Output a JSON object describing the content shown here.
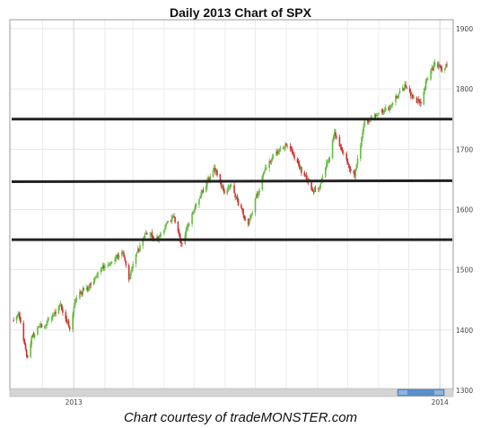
{
  "chart_data": {
    "type": "candlestick",
    "title": "Daily 2013 Chart of SPX",
    "caption": "Chart courtesy of tradeMONSTER.com",
    "xlabel": "",
    "ylabel": "",
    "x_range": [
      "2012-11-01",
      "2014-01-08"
    ],
    "ylim": [
      1300,
      1900
    ],
    "y_ticks": [
      "1900",
      "1800",
      "1700",
      "1600",
      "1500",
      "1400",
      "1300"
    ],
    "x_ticks": [
      "2013",
      "2014"
    ],
    "x_tick_dates": [
      "2013-01-01",
      "2014-01-01"
    ],
    "grid": true,
    "up_color": "#66bb44",
    "down_color": "#cc3333",
    "horizontal_lines": [
      1750,
      1647,
      1550
    ],
    "line_color": "#222222",
    "path": [
      [
        "2012-11-01",
        1412
      ],
      [
        "2012-11-07",
        1428
      ],
      [
        "2012-11-12",
        1380
      ],
      [
        "2012-11-16",
        1352
      ],
      [
        "2012-11-20",
        1387
      ],
      [
        "2012-11-26",
        1405
      ],
      [
        "2012-12-03",
        1410
      ],
      [
        "2012-12-10",
        1420
      ],
      [
        "2012-12-18",
        1443
      ],
      [
        "2012-12-28",
        1403
      ],
      [
        "2013-01-03",
        1455
      ],
      [
        "2013-01-15",
        1470
      ],
      [
        "2013-01-28",
        1502
      ],
      [
        "2013-02-11",
        1518
      ],
      [
        "2013-02-19",
        1530
      ],
      [
        "2013-02-25",
        1488
      ],
      [
        "2013-03-04",
        1525
      ],
      [
        "2013-03-14",
        1560
      ],
      [
        "2013-03-25",
        1552
      ],
      [
        "2013-04-11",
        1590
      ],
      [
        "2013-04-18",
        1542
      ],
      [
        "2013-04-30",
        1595
      ],
      [
        "2013-05-10",
        1632
      ],
      [
        "2013-05-21",
        1670
      ],
      [
        "2013-05-31",
        1630
      ],
      [
        "2013-06-06",
        1640
      ],
      [
        "2013-06-24",
        1573
      ],
      [
        "2013-07-01",
        1615
      ],
      [
        "2013-07-10",
        1665
      ],
      [
        "2013-07-22",
        1695
      ],
      [
        "2013-08-02",
        1708
      ],
      [
        "2013-08-15",
        1668
      ],
      [
        "2013-08-27",
        1632
      ],
      [
        "2013-09-03",
        1640
      ],
      [
        "2013-09-12",
        1685
      ],
      [
        "2013-09-18",
        1725
      ],
      [
        "2013-09-30",
        1680
      ],
      [
        "2013-10-08",
        1655
      ],
      [
        "2013-10-18",
        1745
      ],
      [
        "2013-10-31",
        1760
      ],
      [
        "2013-11-12",
        1767
      ],
      [
        "2013-11-22",
        1795
      ],
      [
        "2013-11-29",
        1806
      ],
      [
        "2013-12-05",
        1785
      ],
      [
        "2013-12-13",
        1775
      ],
      [
        "2013-12-18",
        1810
      ],
      [
        "2013-12-27",
        1842
      ],
      [
        "2014-01-03",
        1832
      ],
      [
        "2014-01-08",
        1838
      ]
    ]
  }
}
